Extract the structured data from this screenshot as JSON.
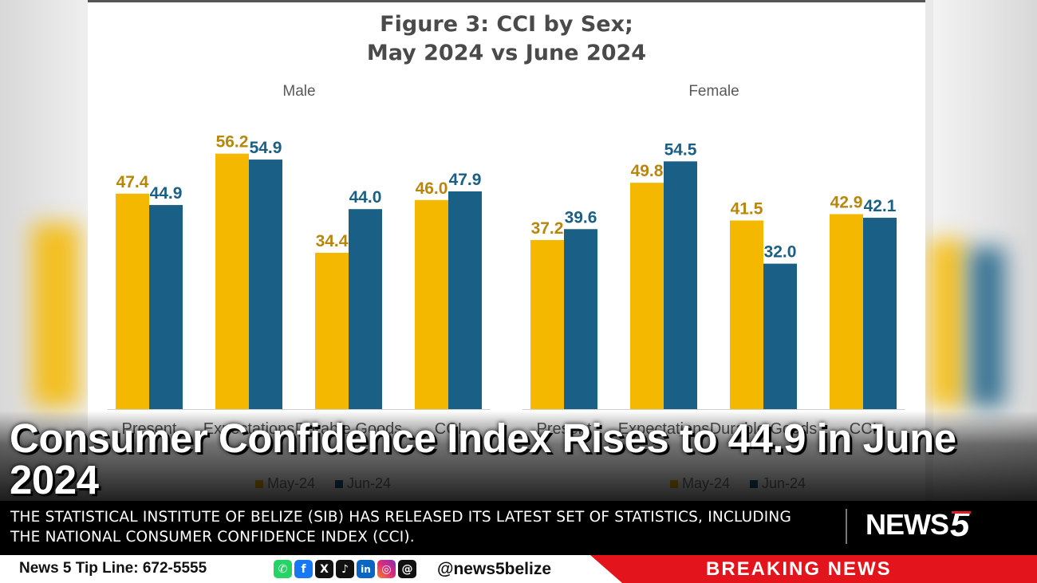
{
  "figure": {
    "title_line1": "Figure 3: CCI by Sex;",
    "title_line2": "May 2024 vs June 2024"
  },
  "chart_data": {
    "type": "bar",
    "colors": {
      "May-24": "#f5b800",
      "Jun-24": "#1a5f85",
      "May_label": "#b8860b",
      "Jun_label": "#1a5f85"
    },
    "legend": [
      "May-24",
      "Jun-24"
    ],
    "panels": [
      {
        "title": "Male",
        "categories": [
          "Present",
          "Expectations",
          "Durable Goods",
          "CCI"
        ],
        "series": [
          {
            "name": "May-24",
            "values": [
              47.4,
              56.2,
              34.4,
              46.0
            ]
          },
          {
            "name": "Jun-24",
            "values": [
              44.9,
              54.9,
              44.0,
              47.9
            ]
          }
        ]
      },
      {
        "title": "Female",
        "categories": [
          "Present",
          "Expectations",
          "Durable Goods",
          "CCI"
        ],
        "series": [
          {
            "name": "May-24",
            "values": [
              37.2,
              49.8,
              41.5,
              42.9
            ]
          },
          {
            "name": "Jun-24",
            "values": [
              39.6,
              54.5,
              32.0,
              42.1
            ]
          }
        ]
      }
    ]
  },
  "headline": "Consumer Confidence Index Rises to 44.9 in June 2024",
  "subheadline": "THE STATISTICAL INSTITUTE OF BELIZE (SIB) HAS RELEASED ITS LATEST SET OF STATISTICS, INCLUDING THE NATIONAL CONSUMER CONFIDENCE INDEX (CCI).",
  "logo": {
    "text": "NEWS",
    "number": "5"
  },
  "footer": {
    "tipline": "News 5 Tip Line: 672-5555",
    "handle": "@news5belize",
    "breaking": "BREAKING NEWS",
    "social_icons": [
      "whatsapp-icon",
      "facebook-icon",
      "x-icon",
      "tiktok-icon",
      "linkedin-icon",
      "instagram-icon",
      "threads-icon"
    ]
  }
}
